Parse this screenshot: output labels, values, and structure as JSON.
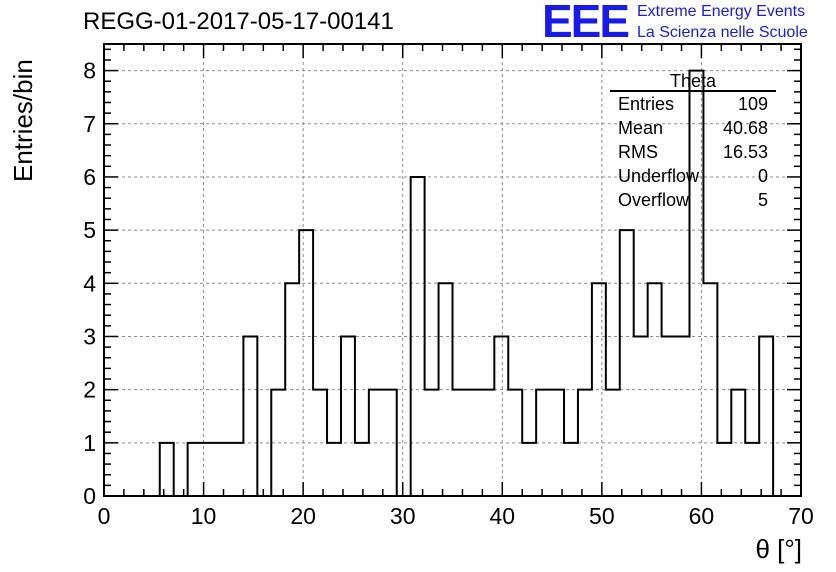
{
  "title": "REGG-01-2017-05-17-00141",
  "logo": {
    "mark": "EEE",
    "line1": "Extreme Energy Events",
    "line2": "La Scienza nelle Scuole"
  },
  "stats_box": {
    "title": "Theta",
    "rows": [
      {
        "label": "Entries",
        "value": "109"
      },
      {
        "label": "Mean",
        "value": "40.68"
      },
      {
        "label": "RMS",
        "value": "16.53"
      },
      {
        "label": "Underflow",
        "value": "0"
      },
      {
        "label": "Overflow",
        "value": "5"
      }
    ]
  },
  "colors": {
    "line": "#000000",
    "grid": "#8c8c8c",
    "logo": "#1a1ae6"
  },
  "chart_data": {
    "type": "histogram",
    "xlabel": "θ [°]",
    "ylabel": "Entries/bin",
    "xlim": [
      0,
      70
    ],
    "ylim": [
      0,
      8.5
    ],
    "grid": true,
    "x_ticks": [
      0,
      10,
      20,
      30,
      40,
      50,
      60,
      70
    ],
    "y_ticks": [
      0,
      1,
      2,
      3,
      4,
      5,
      6,
      7,
      8
    ],
    "bin_edges": [
      0,
      1.4,
      2.8,
      4.2,
      5.6,
      7.0,
      8.4,
      9.8,
      11.2,
      12.6,
      14.0,
      15.4,
      16.8,
      18.2,
      19.6,
      21.0,
      22.4,
      23.8,
      25.2,
      26.6,
      28.0,
      29.4,
      30.8,
      32.2,
      33.6,
      35.0,
      36.4,
      37.8,
      39.2,
      40.6,
      42.0,
      43.4,
      44.8,
      46.2,
      47.6,
      49.0,
      50.4,
      51.8,
      53.2,
      54.6,
      56.0,
      57.4,
      58.8,
      60.2,
      61.6,
      63.0,
      64.4,
      65.8,
      67.2
    ],
    "counts": [
      0,
      0,
      0,
      0,
      1,
      0,
      1,
      1,
      1,
      1,
      3,
      0,
      2,
      4,
      5,
      2,
      1,
      3,
      1,
      2,
      2,
      0,
      6,
      2,
      4,
      2,
      2,
      2,
      3,
      2,
      1,
      2,
      2,
      1,
      2,
      4,
      2,
      5,
      3,
      4,
      3,
      3,
      8,
      4,
      1,
      2,
      1,
      3
    ]
  }
}
